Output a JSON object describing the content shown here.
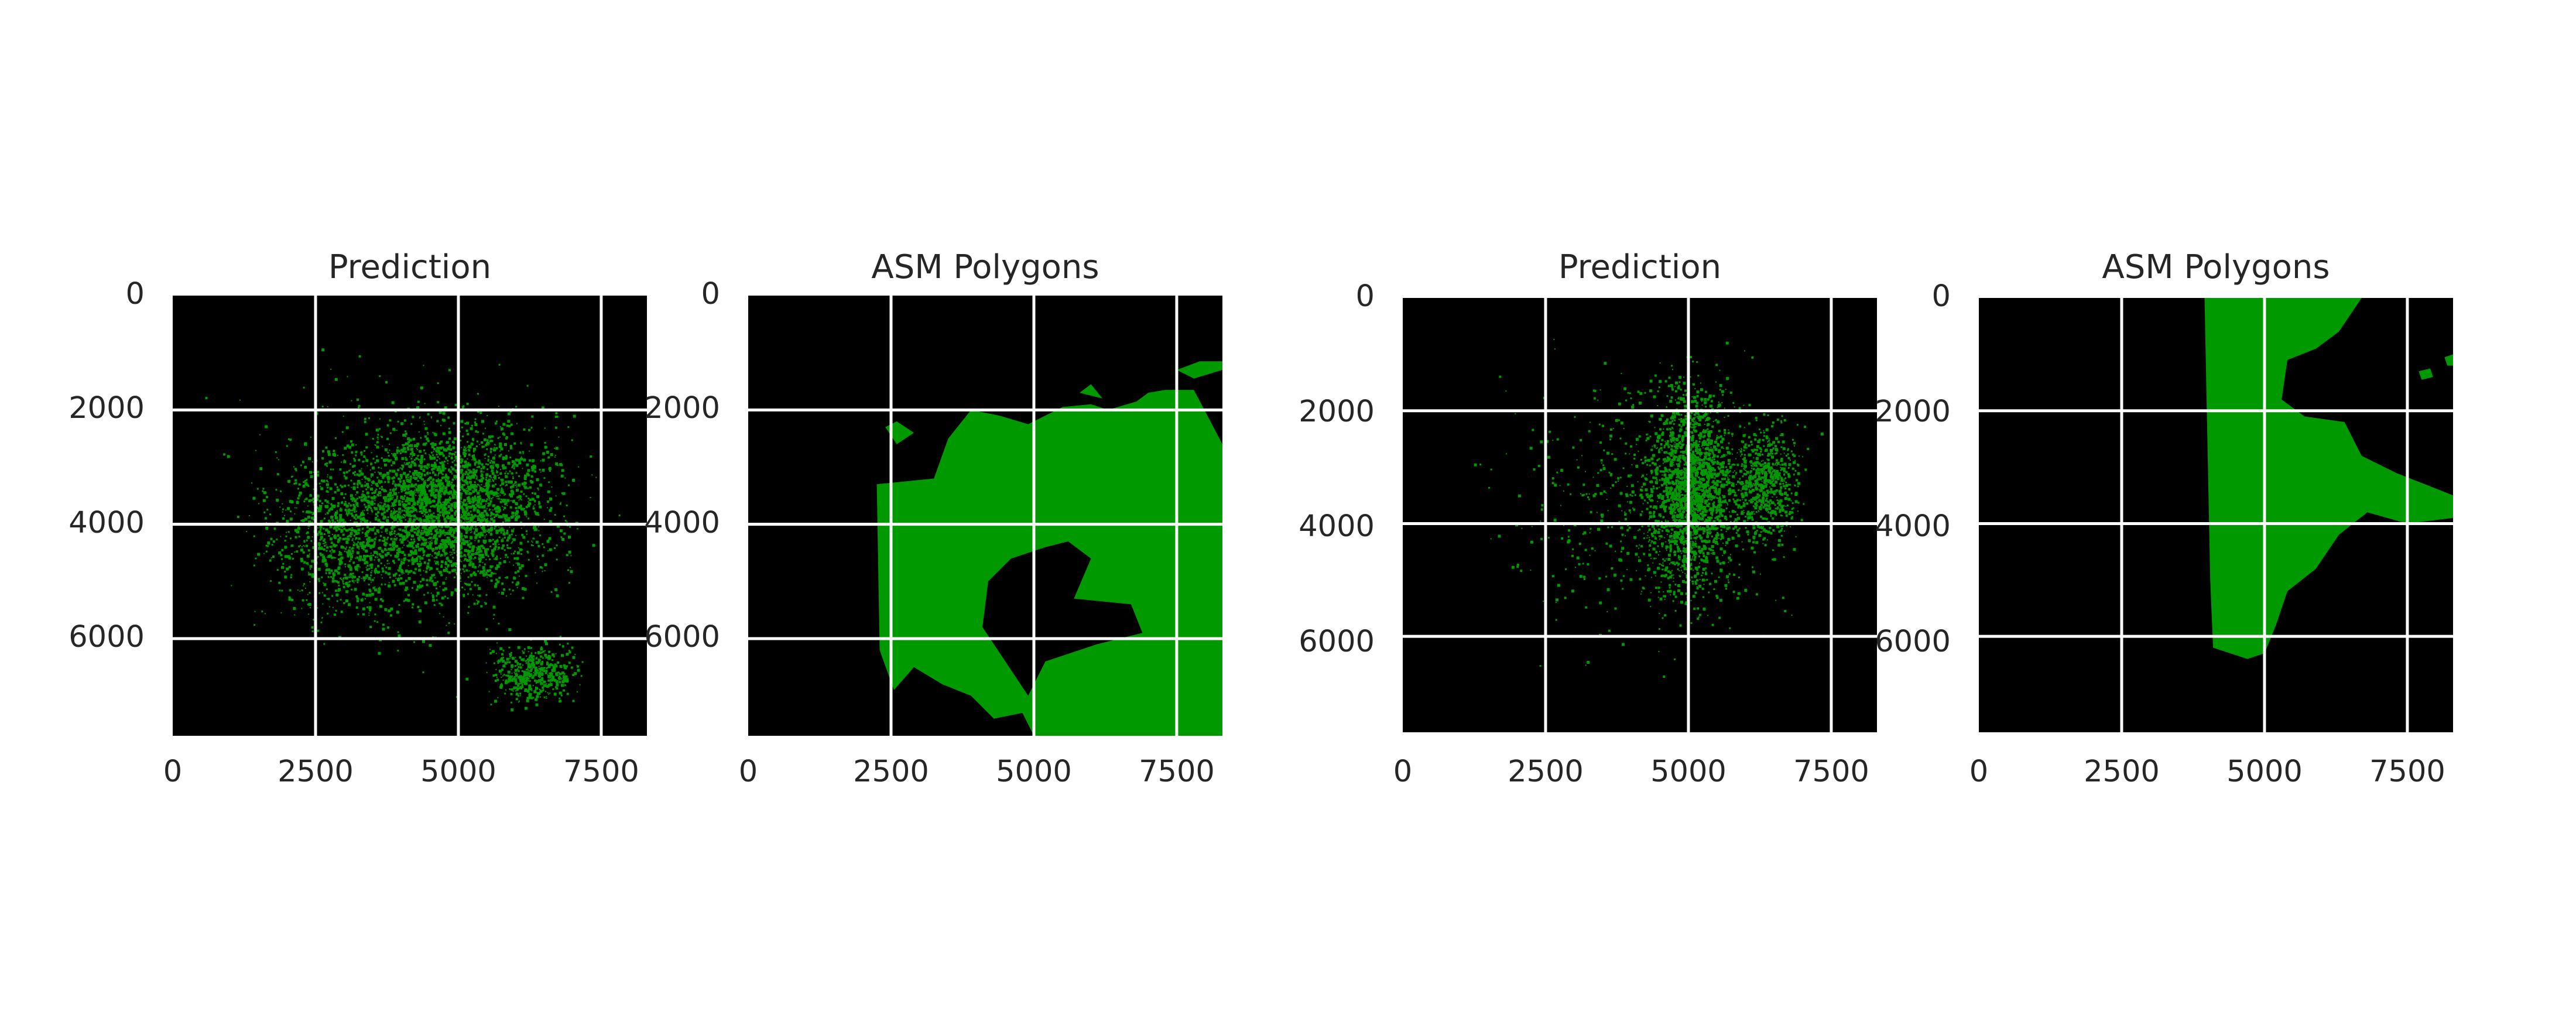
{
  "figure": {
    "background": "#ffffff",
    "text_color": "#262626",
    "grid_color": "#ffffff",
    "image_background": "#000000",
    "foreground_color": "#009900"
  },
  "chart_data": [
    {
      "type": "image",
      "title": "Prediction",
      "xticks": [
        "0",
        "2500",
        "5000",
        "7500"
      ],
      "yticks": [
        "0",
        "2000",
        "4000",
        "6000"
      ],
      "xlim": [
        0,
        8300
      ],
      "ylim": [
        7700,
        0
      ],
      "grid": true,
      "mask_style": "speckle",
      "regions": [
        {
          "center": [
            4900,
            3700
          ],
          "radius": [
            2400,
            2050
          ],
          "density": 0.55,
          "count": 2600
        },
        {
          "center": [
            3000,
            4200
          ],
          "radius": [
            1900,
            1900
          ],
          "density": 0.4,
          "count": 900
        },
        {
          "center": [
            6300,
            6600
          ],
          "radius": [
            1000,
            700
          ],
          "density": 0.45,
          "count": 500
        },
        {
          "center": [
            4200,
            3800
          ],
          "radius": [
            4200,
            3300
          ],
          "density": 0.1,
          "count": 700
        }
      ]
    },
    {
      "type": "image",
      "title": "ASM Polygons",
      "xticks": [
        "0",
        "2500",
        "5000",
        "7500"
      ],
      "yticks": [
        "0",
        "2000",
        "4000",
        "6000"
      ],
      "xlim": [
        0,
        8300
      ],
      "ylim": [
        7700,
        0
      ],
      "grid": true,
      "mask_style": "polygon",
      "polygons": [
        [
          [
            2250,
            3300
          ],
          [
            3250,
            3200
          ],
          [
            3500,
            2500
          ],
          [
            3900,
            2000
          ],
          [
            4400,
            2100
          ],
          [
            4900,
            2250
          ],
          [
            5500,
            1950
          ],
          [
            6000,
            1900
          ],
          [
            6300,
            2000
          ],
          [
            6800,
            1850
          ],
          [
            7000,
            1700
          ],
          [
            7300,
            1650
          ],
          [
            7800,
            1650
          ],
          [
            8300,
            2600
          ],
          [
            8300,
            7700
          ],
          [
            5000,
            7700
          ],
          [
            4800,
            7300
          ],
          [
            4300,
            7400
          ],
          [
            3900,
            7000
          ],
          [
            3400,
            6800
          ],
          [
            2900,
            6500
          ],
          [
            2550,
            6900
          ],
          [
            2300,
            6200
          ]
        ],
        [
          [
            2400,
            2300
          ],
          [
            2600,
            2200
          ],
          [
            2900,
            2400
          ],
          [
            2600,
            2600
          ]
        ],
        [
          [
            5800,
            1700
          ],
          [
            6000,
            1550
          ],
          [
            6200,
            1800
          ]
        ],
        [
          [
            7500,
            1300
          ],
          [
            7900,
            1150
          ],
          [
            8300,
            1150
          ],
          [
            8300,
            1300
          ],
          [
            7800,
            1450
          ]
        ]
      ],
      "holes": [
        [
          [
            4200,
            5000
          ],
          [
            4600,
            4600
          ],
          [
            5200,
            4400
          ],
          [
            5600,
            4300
          ],
          [
            6000,
            4600
          ],
          [
            5700,
            5300
          ],
          [
            6700,
            5400
          ],
          [
            6900,
            5900
          ],
          [
            6100,
            6100
          ],
          [
            5200,
            6400
          ],
          [
            4900,
            7000
          ],
          [
            4500,
            6400
          ],
          [
            4100,
            5800
          ]
        ]
      ]
    },
    {
      "type": "image",
      "title": "Prediction",
      "xticks": [
        "0",
        "2500",
        "5000",
        "7500"
      ],
      "yticks": [
        "0",
        "2000",
        "4000",
        "6000"
      ],
      "xlim": [
        0,
        8300
      ],
      "ylim": [
        7700,
        0
      ],
      "grid": true,
      "mask_style": "speckle",
      "regions": [
        {
          "center": [
            5000,
            3400
          ],
          "radius": [
            1000,
            2500
          ],
          "density": 0.6,
          "count": 2000
        },
        {
          "center": [
            6300,
            3300
          ],
          "radius": [
            900,
            1500
          ],
          "density": 0.45,
          "count": 700
        },
        {
          "center": [
            4300,
            3600
          ],
          "radius": [
            3300,
            3500
          ],
          "density": 0.1,
          "count": 600
        }
      ]
    },
    {
      "type": "image",
      "title": "ASM Polygons",
      "xticks": [
        "0",
        "2500",
        "5000",
        "7500"
      ],
      "yticks": [
        "0",
        "2000",
        "4000",
        "6000"
      ],
      "xlim": [
        0,
        8300
      ],
      "ylim": [
        7700,
        0
      ],
      "grid": true,
      "mask_style": "polygon",
      "polygons": [
        [
          [
            3950,
            0
          ],
          [
            6700,
            0
          ],
          [
            6300,
            600
          ],
          [
            5900,
            900
          ],
          [
            5400,
            1100
          ],
          [
            5300,
            1800
          ],
          [
            5700,
            2100
          ],
          [
            6400,
            2200
          ],
          [
            6700,
            2800
          ],
          [
            7300,
            3100
          ],
          [
            8300,
            3500
          ],
          [
            8300,
            3900
          ],
          [
            7500,
            4000
          ],
          [
            6800,
            3800
          ],
          [
            6300,
            4200
          ],
          [
            5900,
            4800
          ],
          [
            5400,
            5200
          ],
          [
            5200,
            5800
          ],
          [
            5000,
            6300
          ],
          [
            4700,
            6400
          ],
          [
            4100,
            6200
          ],
          [
            4050,
            5000
          ]
        ],
        [
          [
            7700,
            1300
          ],
          [
            7900,
            1250
          ],
          [
            7950,
            1400
          ],
          [
            7750,
            1450
          ]
        ],
        [
          [
            8150,
            1050
          ],
          [
            8300,
            1000
          ],
          [
            8300,
            1200
          ],
          [
            8200,
            1200
          ]
        ]
      ],
      "holes": []
    }
  ]
}
